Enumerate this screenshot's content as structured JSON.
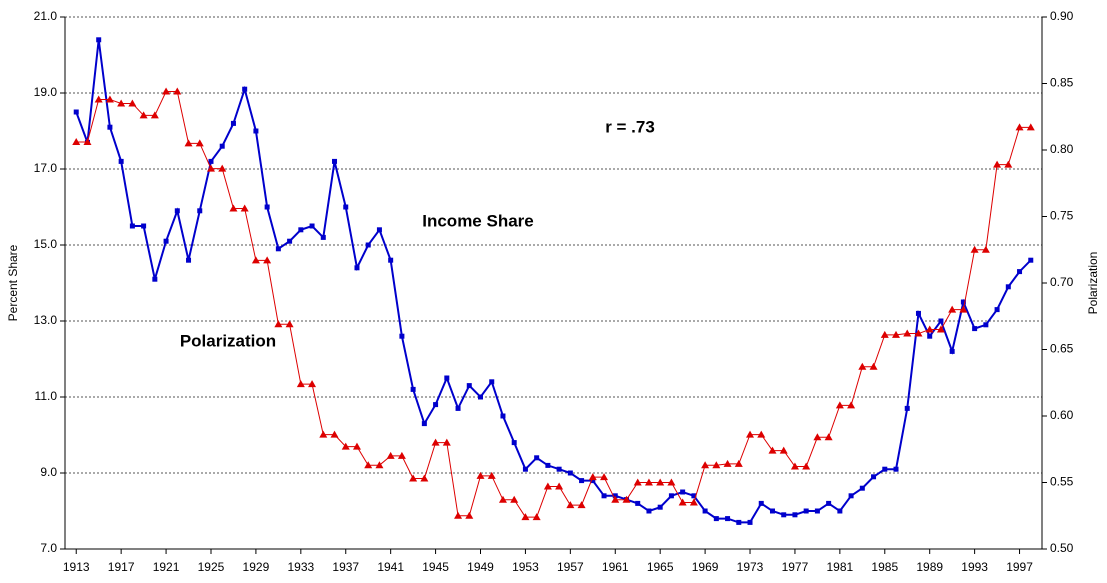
{
  "chart_data": {
    "type": "line",
    "y_label": "Percent Share",
    "y2_label": "Polarization",
    "annotations": [
      "r = .73",
      "Income Share",
      "Polarization"
    ],
    "x": [
      1913,
      1914,
      1915,
      1916,
      1917,
      1918,
      1919,
      1920,
      1921,
      1922,
      1923,
      1924,
      1925,
      1926,
      1927,
      1928,
      1929,
      1930,
      1931,
      1932,
      1933,
      1934,
      1935,
      1936,
      1937,
      1938,
      1939,
      1940,
      1941,
      1942,
      1943,
      1944,
      1945,
      1946,
      1947,
      1948,
      1949,
      1950,
      1951,
      1952,
      1953,
      1954,
      1955,
      1956,
      1957,
      1958,
      1959,
      1960,
      1961,
      1962,
      1963,
      1964,
      1965,
      1966,
      1967,
      1968,
      1969,
      1970,
      1971,
      1972,
      1973,
      1974,
      1975,
      1976,
      1977,
      1978,
      1979,
      1980,
      1981,
      1982,
      1983,
      1984,
      1985,
      1986,
      1987,
      1988,
      1989,
      1990,
      1991,
      1992,
      1993,
      1994,
      1995,
      1996,
      1997,
      1998
    ],
    "series": [
      {
        "name": "Income Share",
        "color": "#0000cc",
        "marker": "square",
        "axis": "y",
        "values": [
          18.5,
          17.7,
          20.4,
          18.1,
          17.2,
          15.5,
          15.5,
          14.1,
          15.1,
          15.9,
          14.6,
          15.9,
          17.2,
          17.6,
          18.2,
          19.1,
          18.0,
          16.0,
          14.9,
          15.1,
          15.4,
          15.5,
          15.2,
          17.2,
          16.0,
          14.4,
          15.0,
          15.4,
          14.6,
          12.6,
          11.2,
          10.3,
          10.8,
          11.5,
          10.7,
          11.3,
          11.0,
          11.4,
          10.5,
          9.8,
          9.1,
          9.4,
          9.2,
          9.1,
          9.0,
          8.8,
          8.8,
          8.4,
          8.4,
          8.3,
          8.2,
          8.0,
          8.1,
          8.4,
          8.5,
          8.4,
          8.0,
          7.8,
          7.8,
          7.7,
          7.7,
          8.2,
          8.0,
          7.9,
          7.9,
          8.0,
          8.0,
          8.2,
          8.0,
          8.4,
          8.6,
          8.9,
          9.1,
          9.1,
          10.7,
          13.2,
          12.6,
          13.0,
          12.2,
          13.5,
          12.8,
          12.9,
          13.3,
          13.9,
          14.3,
          14.6
        ]
      },
      {
        "name": "Polarization",
        "color": "#dd0000",
        "marker": "triangle",
        "axis": "y2",
        "values": [
          0.806,
          0.806,
          0.838,
          0.838,
          0.835,
          0.835,
          0.826,
          0.826,
          0.844,
          0.844,
          0.805,
          0.805,
          0.786,
          0.786,
          0.756,
          0.756,
          0.717,
          0.717,
          0.669,
          0.669,
          0.624,
          0.624,
          0.586,
          0.586,
          0.577,
          0.577,
          0.563,
          0.563,
          0.57,
          0.57,
          0.553,
          0.553,
          0.58,
          0.58,
          0.525,
          0.525,
          0.555,
          0.555,
          0.537,
          0.537,
          0.524,
          0.524,
          0.547,
          0.547,
          0.533,
          0.533,
          0.554,
          0.554,
          0.537,
          0.537,
          0.55,
          0.55,
          0.55,
          0.55,
          0.535,
          0.535,
          0.563,
          0.563,
          0.564,
          0.564,
          0.586,
          0.586,
          0.574,
          0.574,
          0.562,
          0.562,
          0.584,
          0.584,
          0.608,
          0.608,
          0.637,
          0.637,
          0.661,
          0.661,
          0.662,
          0.662,
          0.665,
          0.665,
          0.68,
          0.68,
          0.725,
          0.725,
          0.789,
          0.789,
          0.817,
          0.817
        ]
      }
    ],
    "xlim": [
      1912,
      1999
    ],
    "xticks": [
      1913,
      1917,
      1921,
      1925,
      1929,
      1933,
      1937,
      1941,
      1945,
      1949,
      1953,
      1957,
      1961,
      1965,
      1969,
      1973,
      1977,
      1981,
      1985,
      1989,
      1993,
      1997
    ],
    "ylim": [
      7,
      21
    ],
    "yticks": [
      {
        "value": 7,
        "label": "7.0"
      },
      {
        "value": 9,
        "label": "9.0"
      },
      {
        "value": 11,
        "label": "11.0"
      },
      {
        "value": 13,
        "label": "13.0"
      },
      {
        "value": 15,
        "label": "15.0"
      },
      {
        "value": 17,
        "label": "17.0"
      },
      {
        "value": 19,
        "label": "19.0"
      },
      {
        "value": 21,
        "label": "21.0"
      }
    ],
    "y2lim": [
      0.5,
      0.9
    ],
    "y2ticks": [
      {
        "value": 0.5,
        "label": "0.50"
      },
      {
        "value": 0.55,
        "label": "0.55"
      },
      {
        "value": 0.6,
        "label": "0.60"
      },
      {
        "value": 0.65,
        "label": "0.65"
      },
      {
        "value": 0.7,
        "label": "0.70"
      },
      {
        "value": 0.75,
        "label": "0.75"
      },
      {
        "value": 0.8,
        "label": "0.80"
      },
      {
        "value": 0.85,
        "label": "0.85"
      },
      {
        "value": 0.9,
        "label": "0.90"
      }
    ],
    "grid": true
  }
}
